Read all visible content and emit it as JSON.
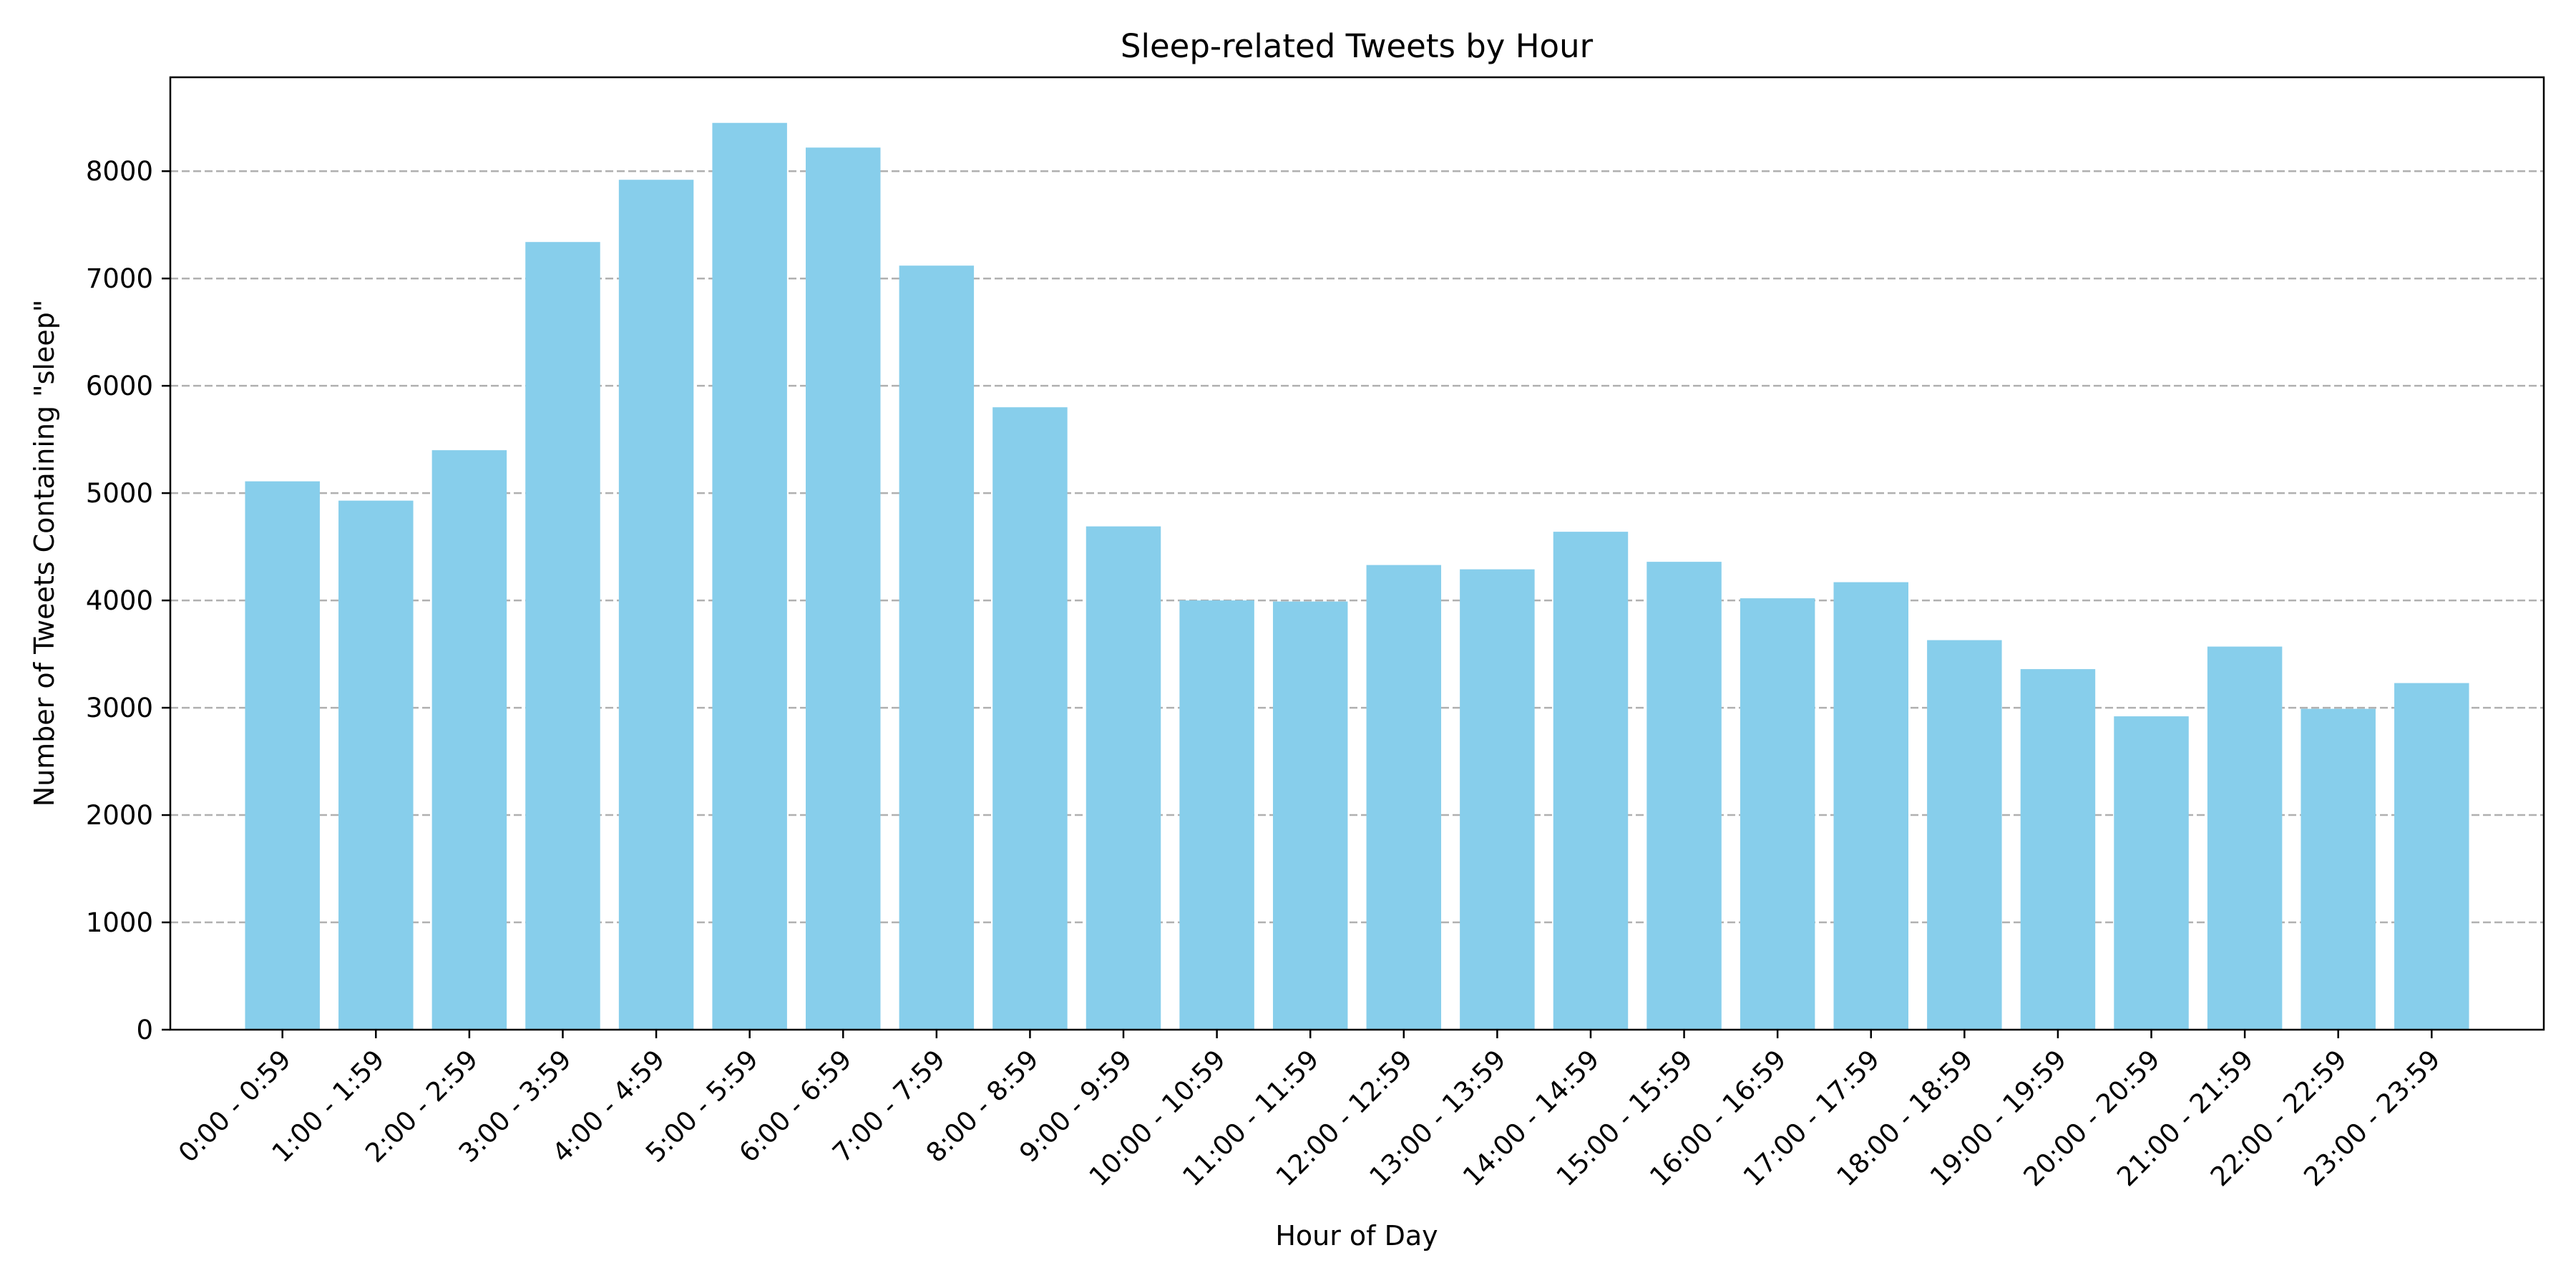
{
  "chart_data": {
    "type": "bar",
    "title": "Sleep-related Tweets by Hour",
    "xlabel": "Hour of Day",
    "ylabel": "Number of Tweets Containing \"sleep\"",
    "categories": [
      "0:00 - 0:59",
      "1:00 - 1:59",
      "2:00 - 2:59",
      "3:00 - 3:59",
      "4:00 - 4:59",
      "5:00 - 5:59",
      "6:00 - 6:59",
      "7:00 - 7:59",
      "8:00 - 8:59",
      "9:00 - 9:59",
      "10:00 - 10:59",
      "11:00 - 11:59",
      "12:00 - 12:59",
      "13:00 - 13:59",
      "14:00 - 14:59",
      "15:00 - 15:59",
      "16:00 - 16:59",
      "17:00 - 17:59",
      "18:00 - 18:59",
      "19:00 - 19:59",
      "20:00 - 20:59",
      "21:00 - 21:59",
      "22:00 - 22:59",
      "23:00 - 23:59"
    ],
    "values": [
      5110,
      4930,
      5400,
      7340,
      7920,
      8450,
      8220,
      7120,
      5800,
      4690,
      4000,
      3990,
      4330,
      4290,
      4640,
      4360,
      4020,
      4170,
      3630,
      3360,
      2920,
      3570,
      2990,
      3230
    ],
    "ylim": [
      0,
      8875
    ],
    "yticks": [
      0,
      1000,
      2000,
      3000,
      4000,
      5000,
      6000,
      7000,
      8000
    ],
    "grid": "y-axis dashed",
    "bar_color": "#87CEEB",
    "legend": "none"
  }
}
